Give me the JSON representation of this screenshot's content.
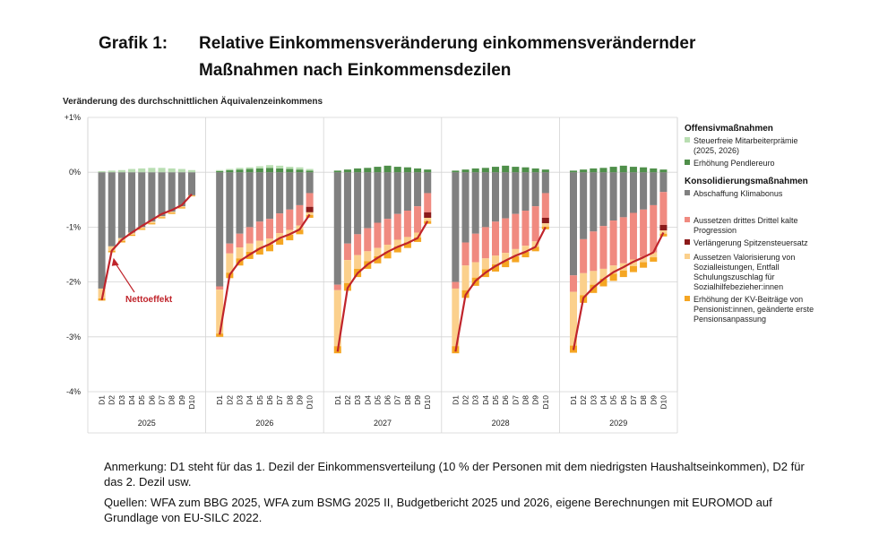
{
  "title": {
    "number": "Grafik 1:",
    "line1": "Relative Einkommensveränderung einkommensverändernder",
    "line2": "Maßnahmen nach Einkommensdezilen"
  },
  "chart_data": {
    "type": "bar",
    "subtitle": "Veränderung des durchschnittlichen Äquivalenzeinkommens",
    "y_ticks": [
      "+1%",
      "0%",
      "-1%",
      "-2%",
      "-3%",
      "-4%"
    ],
    "ylim": [
      -4,
      1
    ],
    "grid": true,
    "legend_placement": "right",
    "deciles": [
      "D1",
      "D2",
      "D3",
      "D4",
      "D5",
      "D6",
      "D7",
      "D8",
      "D9",
      "D10"
    ],
    "years": [
      "2025",
      "2026",
      "2027",
      "2028",
      "2029"
    ],
    "annotation": "Nettoeffekt",
    "legend": {
      "offensive_heading": "Offensivmaßnahmen",
      "offensive_items": [
        {
          "label": "Steuerfreie Mitarbeiterprämie (2025, 2026)",
          "color": "#b9deb2"
        },
        {
          "label": "Erhöhung Pendlereuro",
          "color": "#4f8f4a"
        }
      ],
      "consolidation_heading": "Konsolidierungsmaßnahmen",
      "consolidation_items": [
        {
          "label": "Abschaffung Klimabonus",
          "color": "#808080"
        },
        {
          "label": "Aussetzen drittes Drittel kalte Progression",
          "color": "#f08a80"
        },
        {
          "label": "Verlängerung Spitzensteuersatz",
          "color": "#8b1a1a"
        },
        {
          "label": "Aussetzen Valorisierung von Sozialleistungen, Entfall Schulungszuschlag für Sozialhilfebezieher:innen",
          "color": "#fbd08c"
        },
        {
          "label": "Erhöhung der KV-Beiträge von Pensionist:innen, geänderte erste Pensionsanpassung",
          "color": "#f5a623"
        }
      ],
      "net_color": "#c0242b"
    },
    "series": [
      {
        "year": "2025",
        "klimabonus": [
          -2.12,
          -1.35,
          -1.2,
          -1.1,
          -1.0,
          -0.9,
          -0.8,
          -0.72,
          -0.62,
          -0.42
        ],
        "progression": [
          0,
          0,
          0,
          0,
          0,
          0,
          0,
          0,
          0,
          0
        ],
        "spitzensteuer": [
          0,
          0,
          0,
          0,
          0,
          0,
          0,
          0,
          0,
          0
        ],
        "valorisierung": [
          -0.18,
          -0.08,
          -0.05,
          -0.04,
          -0.03,
          -0.03,
          -0.02,
          -0.02,
          -0.02,
          -0.01
        ],
        "kv_pension": [
          -0.04,
          -0.03,
          -0.03,
          -0.02,
          -0.02,
          -0.02,
          -0.02,
          -0.02,
          -0.02,
          -0.01
        ],
        "mitarbeiterpraemie": [
          0.02,
          0.03,
          0.04,
          0.06,
          0.07,
          0.08,
          0.08,
          0.07,
          0.06,
          0.04
        ],
        "pendlereuro": [
          0,
          0,
          0,
          0,
          0,
          0,
          0,
          0,
          0,
          0
        ],
        "net": [
          -2.33,
          -1.43,
          -1.23,
          -1.1,
          -0.98,
          -0.87,
          -0.76,
          -0.69,
          -0.6,
          -0.4
        ]
      },
      {
        "year": "2026",
        "klimabonus": [
          -2.08,
          -1.3,
          -1.12,
          -1.0,
          -0.9,
          -0.85,
          -0.75,
          -0.68,
          -0.6,
          -0.38
        ],
        "progression": [
          -0.06,
          -0.18,
          -0.25,
          -0.3,
          -0.35,
          -0.36,
          -0.36,
          -0.37,
          -0.37,
          -0.25
        ],
        "spitzensteuer": [
          0,
          0,
          0,
          0,
          0,
          0,
          0,
          0,
          0,
          -0.1
        ],
        "valorisierung": [
          -0.8,
          -0.35,
          -0.2,
          -0.15,
          -0.13,
          -0.11,
          -0.1,
          -0.09,
          -0.08,
          -0.05
        ],
        "kv_pension": [
          -0.06,
          -0.1,
          -0.13,
          -0.13,
          -0.12,
          -0.12,
          -0.11,
          -0.1,
          -0.08,
          -0.05
        ],
        "mitarbeiterpraemie": [
          0.02,
          0.02,
          0.03,
          0.03,
          0.04,
          0.05,
          0.05,
          0.04,
          0.04,
          0.03
        ],
        "pendlereuro": [
          0.02,
          0.04,
          0.05,
          0.06,
          0.07,
          0.08,
          0.07,
          0.06,
          0.05,
          0.03
        ],
        "net": [
          -2.96,
          -1.87,
          -1.62,
          -1.5,
          -1.39,
          -1.31,
          -1.2,
          -1.13,
          -1.04,
          -0.77
        ]
      },
      {
        "year": "2027",
        "klimabonus": [
          -2.05,
          -1.3,
          -1.13,
          -1.02,
          -0.92,
          -0.85,
          -0.76,
          -0.7,
          -0.62,
          -0.38
        ],
        "progression": [
          -0.1,
          -0.3,
          -0.38,
          -0.42,
          -0.46,
          -0.47,
          -0.47,
          -0.48,
          -0.48,
          -0.35
        ],
        "spitzensteuer": [
          0,
          0,
          0,
          0,
          0,
          0,
          0,
          0,
          0,
          -0.1
        ],
        "valorisierung": [
          -1.02,
          -0.42,
          -0.25,
          -0.18,
          -0.15,
          -0.13,
          -0.12,
          -0.1,
          -0.09,
          -0.06
        ],
        "kv_pension": [
          -0.13,
          -0.14,
          -0.15,
          -0.14,
          -0.13,
          -0.12,
          -0.11,
          -0.1,
          -0.08,
          -0.05
        ],
        "mitarbeiterpraemie": [
          0,
          0,
          0,
          0,
          0,
          0,
          0,
          0,
          0,
          0
        ],
        "pendlereuro": [
          0.03,
          0.05,
          0.07,
          0.08,
          0.1,
          0.12,
          0.1,
          0.09,
          0.07,
          0.05
        ],
        "net": [
          -3.27,
          -2.11,
          -1.84,
          -1.68,
          -1.56,
          -1.45,
          -1.36,
          -1.29,
          -1.2,
          -0.89
        ]
      },
      {
        "year": "2028",
        "klimabonus": [
          -2.0,
          -1.28,
          -1.12,
          -1.0,
          -0.9,
          -0.84,
          -0.76,
          -0.7,
          -0.62,
          -0.38
        ],
        "progression": [
          -0.12,
          -0.42,
          -0.52,
          -0.57,
          -0.62,
          -0.63,
          -0.64,
          -0.64,
          -0.64,
          -0.45
        ],
        "spitzensteuer": [
          0,
          0,
          0,
          0,
          0,
          0,
          0,
          0,
          0,
          -0.1
        ],
        "valorisierung": [
          -1.05,
          -0.45,
          -0.28,
          -0.2,
          -0.16,
          -0.14,
          -0.13,
          -0.11,
          -0.1,
          -0.06
        ],
        "kv_pension": [
          -0.13,
          -0.14,
          -0.15,
          -0.14,
          -0.13,
          -0.12,
          -0.11,
          -0.1,
          -0.08,
          -0.05
        ],
        "mitarbeiterpraemie": [
          0,
          0,
          0,
          0,
          0,
          0,
          0,
          0,
          0,
          0
        ],
        "pendlereuro": [
          0.03,
          0.05,
          0.07,
          0.08,
          0.1,
          0.12,
          0.1,
          0.09,
          0.07,
          0.05
        ],
        "net": [
          -3.27,
          -2.24,
          -1.98,
          -1.83,
          -1.71,
          -1.61,
          -1.52,
          -1.45,
          -1.36,
          -1.0
        ]
      },
      {
        "year": "2029",
        "klimabonus": [
          -1.88,
          -1.22,
          -1.08,
          -0.98,
          -0.88,
          -0.82,
          -0.74,
          -0.68,
          -0.6,
          -0.36
        ],
        "progression": [
          -0.3,
          -0.62,
          -0.72,
          -0.78,
          -0.82,
          -0.84,
          -0.85,
          -0.86,
          -0.86,
          -0.6
        ],
        "spitzensteuer": [
          0,
          0,
          0,
          0,
          0,
          0,
          0,
          0,
          0,
          -0.1
        ],
        "valorisierung": [
          -0.98,
          -0.4,
          -0.25,
          -0.18,
          -0.15,
          -0.13,
          -0.12,
          -0.1,
          -0.09,
          -0.06
        ],
        "kv_pension": [
          -0.13,
          -0.14,
          -0.15,
          -0.14,
          -0.13,
          -0.12,
          -0.11,
          -0.1,
          -0.08,
          -0.05
        ],
        "mitarbeiterpraemie": [
          0,
          0,
          0,
          0,
          0,
          0,
          0,
          0,
          0,
          0
        ],
        "pendlereuro": [
          0.03,
          0.05,
          0.07,
          0.08,
          0.1,
          0.12,
          0.1,
          0.09,
          0.07,
          0.05
        ],
        "net": [
          -3.24,
          -2.29,
          -2.1,
          -1.95,
          -1.82,
          -1.73,
          -1.63,
          -1.55,
          -1.46,
          -1.1
        ]
      }
    ]
  },
  "notes": {
    "anmerkung": "Anmerkung: D1 steht für das 1. Dezil der Einkommensverteilung (10 % der Personen mit dem niedrigsten Haushaltseinkommen), D2 für das 2. Dezil usw.",
    "quellen": "Quellen: WFA zum BBG 2025, WFA zum BSMG 2025 II, Budgetbericht 2025 und 2026, eigene Berechnungen mit EUROMOD auf Grundlage von EU-SILC 2022."
  }
}
